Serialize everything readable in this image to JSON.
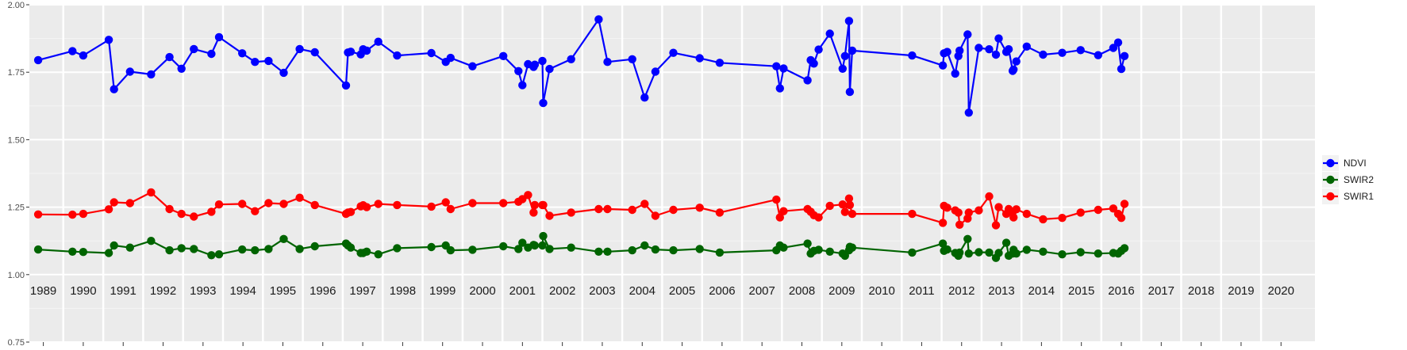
{
  "chart_data": {
    "type": "line",
    "title": "",
    "xlabel": "",
    "ylabel": "",
    "ylim": [
      0.75,
      2.0
    ],
    "y_ticks": [
      "0.75",
      "1.00",
      "1.25",
      "1.50",
      "1.75",
      "2.00"
    ],
    "xlim": [
      1988.65,
      2020.85
    ],
    "year_labels": [
      "1989",
      "1990",
      "1991",
      "1992",
      "1993",
      "1994",
      "1995",
      "1996",
      "1997",
      "1998",
      "1999",
      "2000",
      "2001",
      "2002",
      "2003",
      "2004",
      "2005",
      "2006",
      "2007",
      "2008",
      "2009",
      "2010",
      "2011",
      "2012",
      "2013",
      "2014",
      "2015",
      "2016",
      "2017",
      "2018",
      "2019",
      "2020"
    ],
    "grid": true,
    "legend_position": "right",
    "series": [
      {
        "name": "NDVI",
        "color": "#0000ff",
        "x": [
          1988.87,
          1989.73,
          1990.0,
          1990.64,
          1990.77,
          1991.17,
          1991.7,
          1992.16,
          1992.46,
          1992.77,
          1993.21,
          1993.4,
          1993.98,
          1994.3,
          1994.64,
          1995.02,
          1995.42,
          1995.8,
          1996.58,
          1996.63,
          1996.7,
          1996.95,
          1997.01,
          1997.1,
          1997.39,
          1997.86,
          1998.72,
          1999.08,
          1999.2,
          1999.75,
          2000.52,
          2000.9,
          2001.0,
          2001.14,
          2001.28,
          2001.31,
          2001.5,
          2001.52,
          2001.68,
          2002.22,
          2002.91,
          2003.13,
          2003.75,
          2004.06,
          2004.33,
          2004.78,
          2005.44,
          2005.94,
          2007.36,
          2007.45,
          2007.54,
          2008.14,
          2008.22,
          2008.3,
          2008.42,
          2008.7,
          2009.02,
          2009.08,
          2009.18,
          2009.2,
          2009.26,
          2010.76,
          2011.53,
          2011.56,
          2011.64,
          2011.84,
          2011.92,
          2011.95,
          2012.15,
          2012.18,
          2012.43,
          2012.69,
          2012.86,
          2012.93,
          2013.12,
          2013.18,
          2013.28,
          2013.3,
          2013.37,
          2013.63,
          2014.04,
          2014.52,
          2014.98,
          2015.42,
          2015.8,
          2015.92,
          2016.0,
          2016.08
        ],
        "values": [
          1.795,
          1.828,
          1.812,
          1.87,
          1.687,
          1.752,
          1.742,
          1.806,
          1.763,
          1.836,
          1.818,
          1.88,
          1.82,
          1.788,
          1.792,
          1.748,
          1.836,
          1.824,
          1.701,
          1.823,
          1.826,
          1.816,
          1.835,
          1.83,
          1.863,
          1.812,
          1.821,
          1.788,
          1.803,
          1.772,
          1.81,
          1.754,
          1.702,
          1.78,
          1.77,
          1.778,
          1.792,
          1.636,
          1.762,
          1.798,
          1.946,
          1.788,
          1.798,
          1.656,
          1.752,
          1.822,
          1.802,
          1.785,
          1.772,
          1.69,
          1.764,
          1.72,
          1.795,
          1.782,
          1.834,
          1.893,
          1.763,
          1.81,
          1.94,
          1.677,
          1.83,
          1.812,
          1.775,
          1.82,
          1.825,
          1.745,
          1.81,
          1.83,
          1.89,
          1.6,
          1.84,
          1.835,
          1.815,
          1.875,
          1.825,
          1.835,
          1.755,
          1.76,
          1.79,
          1.845,
          1.815,
          1.822,
          1.832,
          1.813,
          1.84,
          1.86,
          1.762,
          1.81
        ]
      },
      {
        "name": "SWIR2",
        "color": "#006400",
        "x": [
          1988.87,
          1989.73,
          1990.0,
          1990.64,
          1990.77,
          1991.17,
          1991.7,
          1992.16,
          1992.46,
          1992.77,
          1993.21,
          1993.4,
          1993.98,
          1994.3,
          1994.64,
          1995.02,
          1995.42,
          1995.8,
          1996.58,
          1996.63,
          1996.7,
          1996.95,
          1997.01,
          1997.1,
          1997.39,
          1997.86,
          1998.72,
          1999.08,
          1999.2,
          1999.75,
          2000.52,
          2000.9,
          2001.0,
          2001.14,
          2001.28,
          2001.31,
          2001.5,
          2001.52,
          2001.68,
          2002.22,
          2002.91,
          2003.13,
          2003.75,
          2004.06,
          2004.33,
          2004.78,
          2005.44,
          2005.94,
          2007.36,
          2007.45,
          2007.54,
          2008.14,
          2008.22,
          2008.3,
          2008.42,
          2008.7,
          2009.02,
          2009.08,
          2009.18,
          2009.2,
          2009.26,
          2010.76,
          2011.53,
          2011.56,
          2011.64,
          2011.84,
          2011.92,
          2011.95,
          2012.15,
          2012.18,
          2012.43,
          2012.69,
          2012.86,
          2012.93,
          2013.12,
          2013.18,
          2013.28,
          2013.3,
          2013.37,
          2013.63,
          2014.04,
          2014.52,
          2014.98,
          2015.42,
          2015.8,
          2015.92,
          2016.0,
          2016.08
        ],
        "values": [
          1.093,
          1.085,
          1.084,
          1.08,
          1.108,
          1.1,
          1.125,
          1.09,
          1.098,
          1.095,
          1.072,
          1.075,
          1.093,
          1.09,
          1.095,
          1.132,
          1.095,
          1.105,
          1.115,
          1.108,
          1.1,
          1.08,
          1.08,
          1.085,
          1.075,
          1.098,
          1.102,
          1.108,
          1.09,
          1.092,
          1.105,
          1.095,
          1.118,
          1.1,
          1.11,
          1.108,
          1.108,
          1.143,
          1.095,
          1.1,
          1.085,
          1.085,
          1.09,
          1.108,
          1.093,
          1.09,
          1.095,
          1.082,
          1.09,
          1.108,
          1.1,
          1.115,
          1.078,
          1.088,
          1.092,
          1.085,
          1.078,
          1.07,
          1.09,
          1.103,
          1.1,
          1.082,
          1.115,
          1.088,
          1.093,
          1.08,
          1.07,
          1.082,
          1.132,
          1.078,
          1.083,
          1.082,
          1.062,
          1.08,
          1.118,
          1.07,
          1.078,
          1.092,
          1.078,
          1.092,
          1.085,
          1.075,
          1.083,
          1.078,
          1.08,
          1.078,
          1.088,
          1.098
        ]
      },
      {
        "name": "SWIR1",
        "color": "#ff0000",
        "x": [
          1988.87,
          1989.73,
          1990.0,
          1990.64,
          1990.77,
          1991.17,
          1991.7,
          1992.16,
          1992.46,
          1992.77,
          1993.21,
          1993.4,
          1993.98,
          1994.3,
          1994.64,
          1995.02,
          1995.42,
          1995.8,
          1996.58,
          1996.63,
          1996.7,
          1996.95,
          1997.01,
          1997.1,
          1997.39,
          1997.86,
          1998.72,
          1999.08,
          1999.2,
          1999.75,
          2000.52,
          2000.9,
          2001.0,
          2001.14,
          2001.28,
          2001.31,
          2001.5,
          2001.52,
          2001.68,
          2002.22,
          2002.91,
          2003.13,
          2003.75,
          2004.06,
          2004.33,
          2004.78,
          2005.44,
          2005.94,
          2007.36,
          2007.45,
          2007.54,
          2008.14,
          2008.22,
          2008.3,
          2008.42,
          2008.7,
          2009.02,
          2009.08,
          2009.18,
          2009.2,
          2009.26,
          2010.76,
          2011.53,
          2011.56,
          2011.64,
          2011.84,
          2011.92,
          2011.95,
          2012.15,
          2012.18,
          2012.43,
          2012.69,
          2012.86,
          2012.93,
          2013.12,
          2013.18,
          2013.28,
          2013.3,
          2013.37,
          2013.63,
          2014.04,
          2014.52,
          2014.98,
          2015.42,
          2015.8,
          2015.92,
          2016.0,
          2016.08
        ],
        "values": [
          1.223,
          1.222,
          1.225,
          1.242,
          1.268,
          1.265,
          1.305,
          1.243,
          1.225,
          1.215,
          1.233,
          1.26,
          1.262,
          1.235,
          1.265,
          1.262,
          1.285,
          1.258,
          1.225,
          1.23,
          1.232,
          1.253,
          1.257,
          1.25,
          1.262,
          1.258,
          1.252,
          1.268,
          1.243,
          1.265,
          1.265,
          1.27,
          1.28,
          1.295,
          1.23,
          1.258,
          1.258,
          1.258,
          1.218,
          1.23,
          1.243,
          1.243,
          1.24,
          1.262,
          1.218,
          1.24,
          1.248,
          1.23,
          1.278,
          1.212,
          1.235,
          1.243,
          1.233,
          1.22,
          1.212,
          1.255,
          1.26,
          1.232,
          1.282,
          1.258,
          1.225,
          1.225,
          1.192,
          1.255,
          1.248,
          1.238,
          1.23,
          1.185,
          1.208,
          1.23,
          1.238,
          1.29,
          1.183,
          1.25,
          1.225,
          1.243,
          1.232,
          1.212,
          1.242,
          1.225,
          1.205,
          1.21,
          1.23,
          1.24,
          1.245,
          1.225,
          1.21,
          1.262
        ]
      }
    ]
  }
}
